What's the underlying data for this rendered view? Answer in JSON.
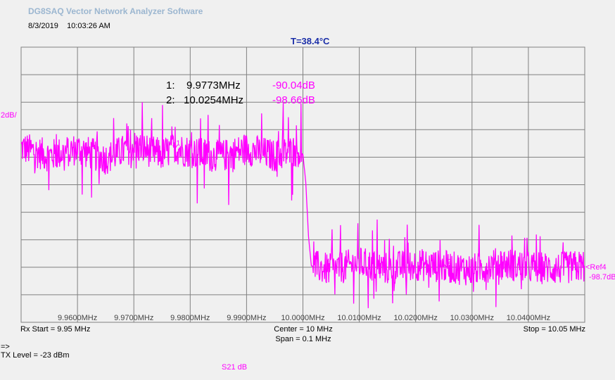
{
  "app": {
    "title": "DG8SAQ Vector Network Analyzer Software",
    "date": "8/3/2019",
    "time": "10:03:26 AM",
    "temperature": "T=38.4°C"
  },
  "markers": [
    {
      "index": "1:",
      "freq": "9.9773MHz",
      "value": "-90.04dB"
    },
    {
      "index": "2:",
      "freq": "10.0254MHz",
      "value": "-98.66dB"
    }
  ],
  "scale_label": "2dB/",
  "ref_label": "<Ref4",
  "ref_value": "-98.7dB",
  "footer": {
    "rx_start": "Rx Start = 9.95 MHz",
    "center": "Center = 10 MHz",
    "span": "Span = 0.1 MHz",
    "stop": "Stop = 10.05 MHz",
    "arrow": "=>",
    "tx_level": "TX Level = -23 dBm",
    "trace_name": "S21  dB"
  },
  "colors": {
    "trace": "#ff00ff",
    "temperature": "#1c2fa8",
    "title": "#9bb6d0",
    "grid": "#808080"
  },
  "chart_data": {
    "type": "line",
    "x_unit": "MHz",
    "xlim": [
      9.95,
      10.05
    ],
    "x_tick_labels": [
      "9.9600MHz",
      "9.9700MHz",
      "9.9800MHz",
      "9.9900MHz",
      "10.0000MHz",
      "10.0100MHz",
      "10.0200MHz",
      "10.0300MHz",
      "10.0400MHz"
    ],
    "y_unit": "dB",
    "y_divisions": 10,
    "y_per_division": 2,
    "ref_level": -98.7,
    "ref_division": 2,
    "ylim": [
      -102.7,
      -82.7
    ],
    "series": [
      {
        "name": "S21  dB",
        "x": [
          9.95,
          9.955,
          9.96,
          9.965,
          9.97,
          9.975,
          9.9773,
          9.98,
          9.985,
          9.99,
          9.995,
          9.999,
          10.0,
          10.0005,
          10.001,
          10.0015,
          10.005,
          10.01,
          10.015,
          10.02,
          10.0254,
          10.03,
          10.035,
          10.04,
          10.045,
          10.05
        ],
        "y": [
          -90.0,
          -90.6,
          -90.1,
          -90.8,
          -89.9,
          -90.5,
          -90.04,
          -90.3,
          -90.7,
          -90.1,
          -90.6,
          -90.2,
          -90.5,
          -92.5,
          -96.5,
          -98.6,
          -98.9,
          -98.4,
          -98.8,
          -98.5,
          -98.66,
          -98.9,
          -98.4,
          -98.7,
          -98.8,
          -98.6
        ]
      }
    ],
    "marker_points": [
      {
        "label": "1",
        "x": 9.9773,
        "y": -90.04
      },
      {
        "label": "2",
        "x": 10.0254,
        "y": -98.66
      }
    ]
  }
}
